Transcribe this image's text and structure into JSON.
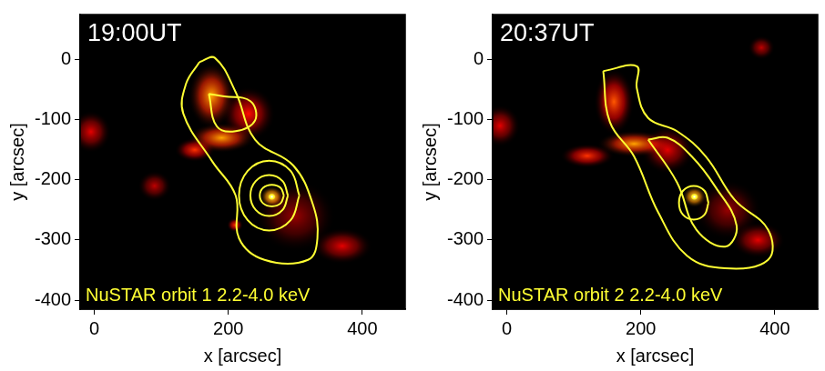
{
  "chart_data": [
    {
      "type": "image_contour",
      "title": "19:00UT",
      "annotation": "NuSTAR orbit 1 2.2-4.0 keV",
      "xlabel": "x [arcsec]",
      "ylabel": "y [arcsec]",
      "xlim": [
        -21,
        464
      ],
      "ylim": [
        -415,
        75
      ],
      "xticks": [
        0,
        200,
        400
      ],
      "yticks": [
        0,
        -100,
        -200,
        -300,
        -400
      ],
      "grid": false,
      "color": "#ffff33",
      "contours": [
        [
          [
            157,
            -4
          ],
          [
            137,
            -40
          ],
          [
            133,
            -90
          ],
          [
            176,
            -169
          ],
          [
            211,
            -226
          ],
          [
            216,
            -297
          ],
          [
            254,
            -333
          ],
          [
            319,
            -333
          ],
          [
            333,
            -297
          ],
          [
            326,
            -240
          ],
          [
            297,
            -176
          ],
          [
            240,
            -133
          ],
          [
            211,
            -54
          ],
          [
            180,
            3
          ]
        ],
        [
          [
            171,
            -57
          ],
          [
            183,
            -111
          ],
          [
            211,
            -119
          ],
          [
            240,
            -101
          ],
          [
            233,
            -69
          ],
          [
            194,
            -61
          ]
        ],
        [
          [
            306,
            -226
          ],
          [
            293,
            -185
          ],
          [
            261,
            -168
          ],
          [
            229,
            -185
          ],
          [
            216,
            -226
          ],
          [
            229,
            -267
          ],
          [
            261,
            -284
          ],
          [
            293,
            -267
          ]
        ],
        [
          [
            289,
            -226
          ],
          [
            281,
            -202
          ],
          [
            261,
            -192
          ],
          [
            241,
            -202
          ],
          [
            233,
            -226
          ],
          [
            241,
            -250
          ],
          [
            261,
            -260
          ],
          [
            281,
            -250
          ]
        ],
        [
          [
            283,
            -226
          ],
          [
            278,
            -213
          ],
          [
            265,
            -208
          ],
          [
            252,
            -213
          ],
          [
            247,
            -226
          ],
          [
            252,
            -239
          ],
          [
            265,
            -244
          ],
          [
            278,
            -239
          ]
        ]
      ],
      "emission": [
        {
          "x": 300,
          "y": -260,
          "radius_x": 60,
          "radius_y": 60,
          "intensity": 0.2
        },
        {
          "x": 175,
          "y": -60,
          "radius_x": 35,
          "radius_y": 55,
          "intensity": 0.55
        },
        {
          "x": 190,
          "y": -130,
          "radius_x": 50,
          "radius_y": 25,
          "intensity": 0.55
        },
        {
          "x": 230,
          "y": -90,
          "radius_x": 40,
          "radius_y": 45,
          "intensity": 0.35
        },
        {
          "x": 150,
          "y": -150,
          "radius_x": 30,
          "radius_y": 20,
          "intensity": 0.4
        },
        {
          "x": -5,
          "y": -120,
          "radius_x": 30,
          "radius_y": 35,
          "intensity": 0.3
        },
        {
          "x": 370,
          "y": -310,
          "radius_x": 45,
          "radius_y": 30,
          "intensity": 0.3
        },
        {
          "x": 210,
          "y": -275,
          "radius_x": 12,
          "radius_y": 12,
          "intensity": 0.4
        },
        {
          "x": 90,
          "y": -210,
          "radius_x": 25,
          "radius_y": 25,
          "intensity": 0.25
        },
        {
          "x": 265,
          "y": -228,
          "radius_x": 18,
          "radius_y": 18,
          "intensity": 0.75
        },
        {
          "x": 265,
          "y": -228,
          "radius_x": 6,
          "radius_y": 6,
          "intensity": 1.0
        }
      ]
    },
    {
      "type": "image_contour",
      "title": "20:37UT",
      "annotation": "NuSTAR orbit 2 2.2-4.0 keV",
      "xlabel": "x [arcsec]",
      "ylabel": "y [arcsec]",
      "xlim": [
        -21,
        464
      ],
      "ylim": [
        -415,
        75
      ],
      "xticks": [
        0,
        200,
        400
      ],
      "yticks": [
        0,
        -100,
        -200,
        -300,
        -400
      ],
      "grid": false,
      "color": "#ffff33",
      "contours": [
        [
          [
            144,
            -19
          ],
          [
            154,
            -104
          ],
          [
            190,
            -161
          ],
          [
            226,
            -254
          ],
          [
            269,
            -326
          ],
          [
            326,
            -347
          ],
          [
            390,
            -333
          ],
          [
            390,
            -283
          ],
          [
            340,
            -233
          ],
          [
            297,
            -161
          ],
          [
            254,
            -119
          ],
          [
            211,
            -97
          ],
          [
            194,
            -47
          ],
          [
            194,
            -11
          ]
        ],
        [
          [
            211,
            -133
          ],
          [
            254,
            -204
          ],
          [
            283,
            -283
          ],
          [
            326,
            -311
          ],
          [
            343,
            -276
          ],
          [
            311,
            -211
          ],
          [
            276,
            -161
          ],
          [
            240,
            -130
          ]
        ],
        [
          [
            301,
            -238
          ],
          [
            295,
            -218
          ],
          [
            279,
            -210
          ],
          [
            263,
            -218
          ],
          [
            257,
            -238
          ],
          [
            263,
            -258
          ],
          [
            279,
            -266
          ],
          [
            295,
            -258
          ]
        ]
      ],
      "emission": [
        {
          "x": 330,
          "y": -250,
          "radius_x": 50,
          "radius_y": 50,
          "intensity": 0.2
        },
        {
          "x": 160,
          "y": -70,
          "radius_x": 30,
          "radius_y": 55,
          "intensity": 0.45
        },
        {
          "x": 190,
          "y": -140,
          "radius_x": 55,
          "radius_y": 22,
          "intensity": 0.55
        },
        {
          "x": 120,
          "y": -160,
          "radius_x": 40,
          "radius_y": 20,
          "intensity": 0.4
        },
        {
          "x": 240,
          "y": -150,
          "radius_x": 40,
          "radius_y": 40,
          "intensity": 0.3
        },
        {
          "x": -10,
          "y": -110,
          "radius_x": 30,
          "radius_y": 35,
          "intensity": 0.3
        },
        {
          "x": 375,
          "y": -300,
          "radius_x": 40,
          "radius_y": 30,
          "intensity": 0.3
        },
        {
          "x": 380,
          "y": 20,
          "radius_x": 20,
          "radius_y": 20,
          "intensity": 0.25
        },
        {
          "x": 280,
          "y": -228,
          "radius_x": 18,
          "radius_y": 18,
          "intensity": 0.75
        },
        {
          "x": 280,
          "y": -228,
          "radius_x": 6,
          "radius_y": 6,
          "intensity": 1.0
        }
      ]
    }
  ]
}
